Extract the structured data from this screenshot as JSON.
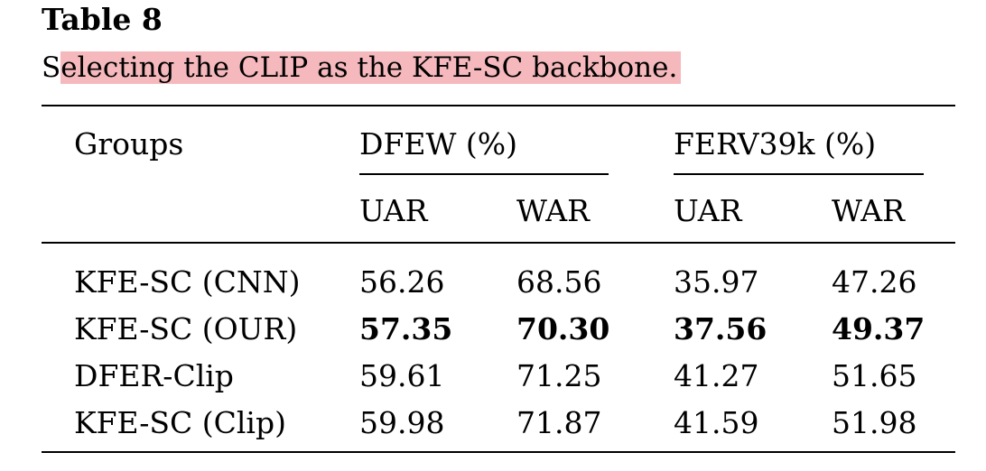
{
  "table": {
    "label": "Table 8",
    "caption_lead": "S",
    "caption_rest": "electing the CLIP as the KFE-SC backbone.",
    "header": {
      "groups_label": "Groups",
      "dfew_label": "DFEW (%)",
      "ferv_label": "FERV39k (%)",
      "sub": [
        "UAR",
        "WAR",
        "UAR",
        "WAR"
      ]
    },
    "rows": [
      {
        "group": "KFE-SC (CNN)",
        "values": [
          "56.26",
          "68.56",
          "35.97",
          "47.26"
        ],
        "bold": false
      },
      {
        "group": "KFE-SC (OUR)",
        "values": [
          "57.35",
          "70.30",
          "37.56",
          "49.37"
        ],
        "bold": true
      },
      {
        "group": "DFER-Clip",
        "values": [
          "59.61",
          "71.25",
          "41.27",
          "51.65"
        ],
        "bold": false
      },
      {
        "group": "KFE-SC (Clip)",
        "values": [
          "59.98",
          "71.87",
          "41.59",
          "51.98"
        ],
        "bold": false
      }
    ],
    "highlight_color": "#f5b8bc"
  }
}
